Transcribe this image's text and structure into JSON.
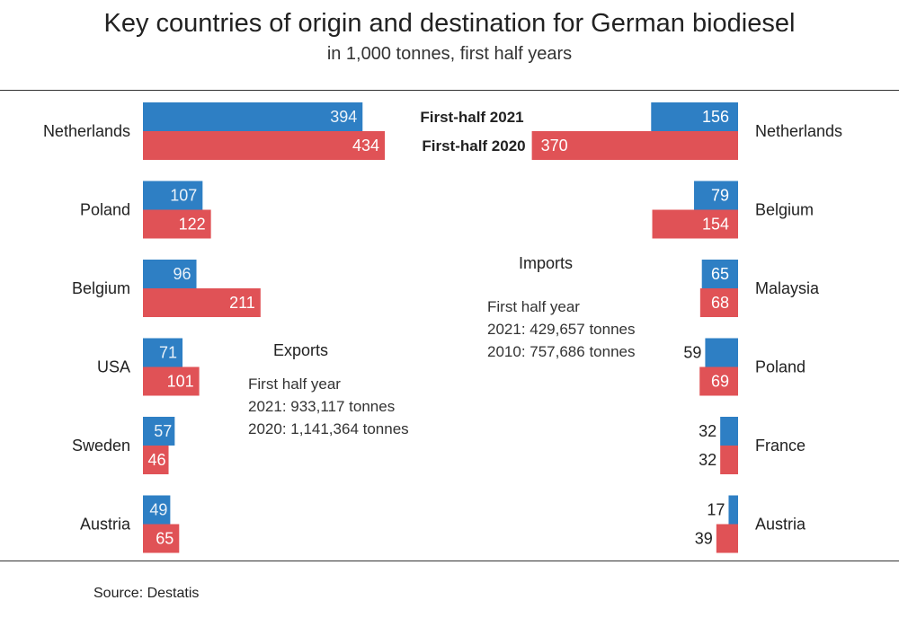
{
  "chart_data": {
    "type": "bar",
    "title": "Key countries of origin and destination for German biodiesel",
    "subtitle": "in 1,000 tonnes, first half years",
    "legend": [
      "First-half 2021",
      "First-half 2020"
    ],
    "colors": {
      "y2021": "#2e7fc4",
      "y2020": "#e05256"
    },
    "exports": {
      "label": "Exports",
      "note": [
        "First half year",
        "2021: 933,117 tonnes",
        "2020: 1,141,364 tonnes"
      ],
      "categories": [
        "Netherlands",
        "Poland",
        "Belgium",
        "USA",
        "Sweden",
        "Austria"
      ],
      "series": [
        {
          "name": "First-half 2021",
          "values": [
            394,
            107,
            96,
            71,
            57,
            49
          ]
        },
        {
          "name": "First-half 2020",
          "values": [
            434,
            122,
            211,
            101,
            46,
            65
          ]
        }
      ]
    },
    "imports": {
      "label": "Imports",
      "note": [
        "First half year",
        "2021: 429,657 tonnes",
        "2010: 757,686  tonnes"
      ],
      "categories": [
        "Netherlands",
        "Belgium",
        "Malaysia",
        "Poland",
        "France",
        "Austria"
      ],
      "series": [
        {
          "name": "First-half 2021",
          "values": [
            156,
            79,
            65,
            59,
            32,
            17
          ]
        },
        {
          "name": "First-half 2020",
          "values": [
            370,
            154,
            68,
            69,
            32,
            39
          ]
        }
      ]
    }
  },
  "source": "Source:  Destatis"
}
